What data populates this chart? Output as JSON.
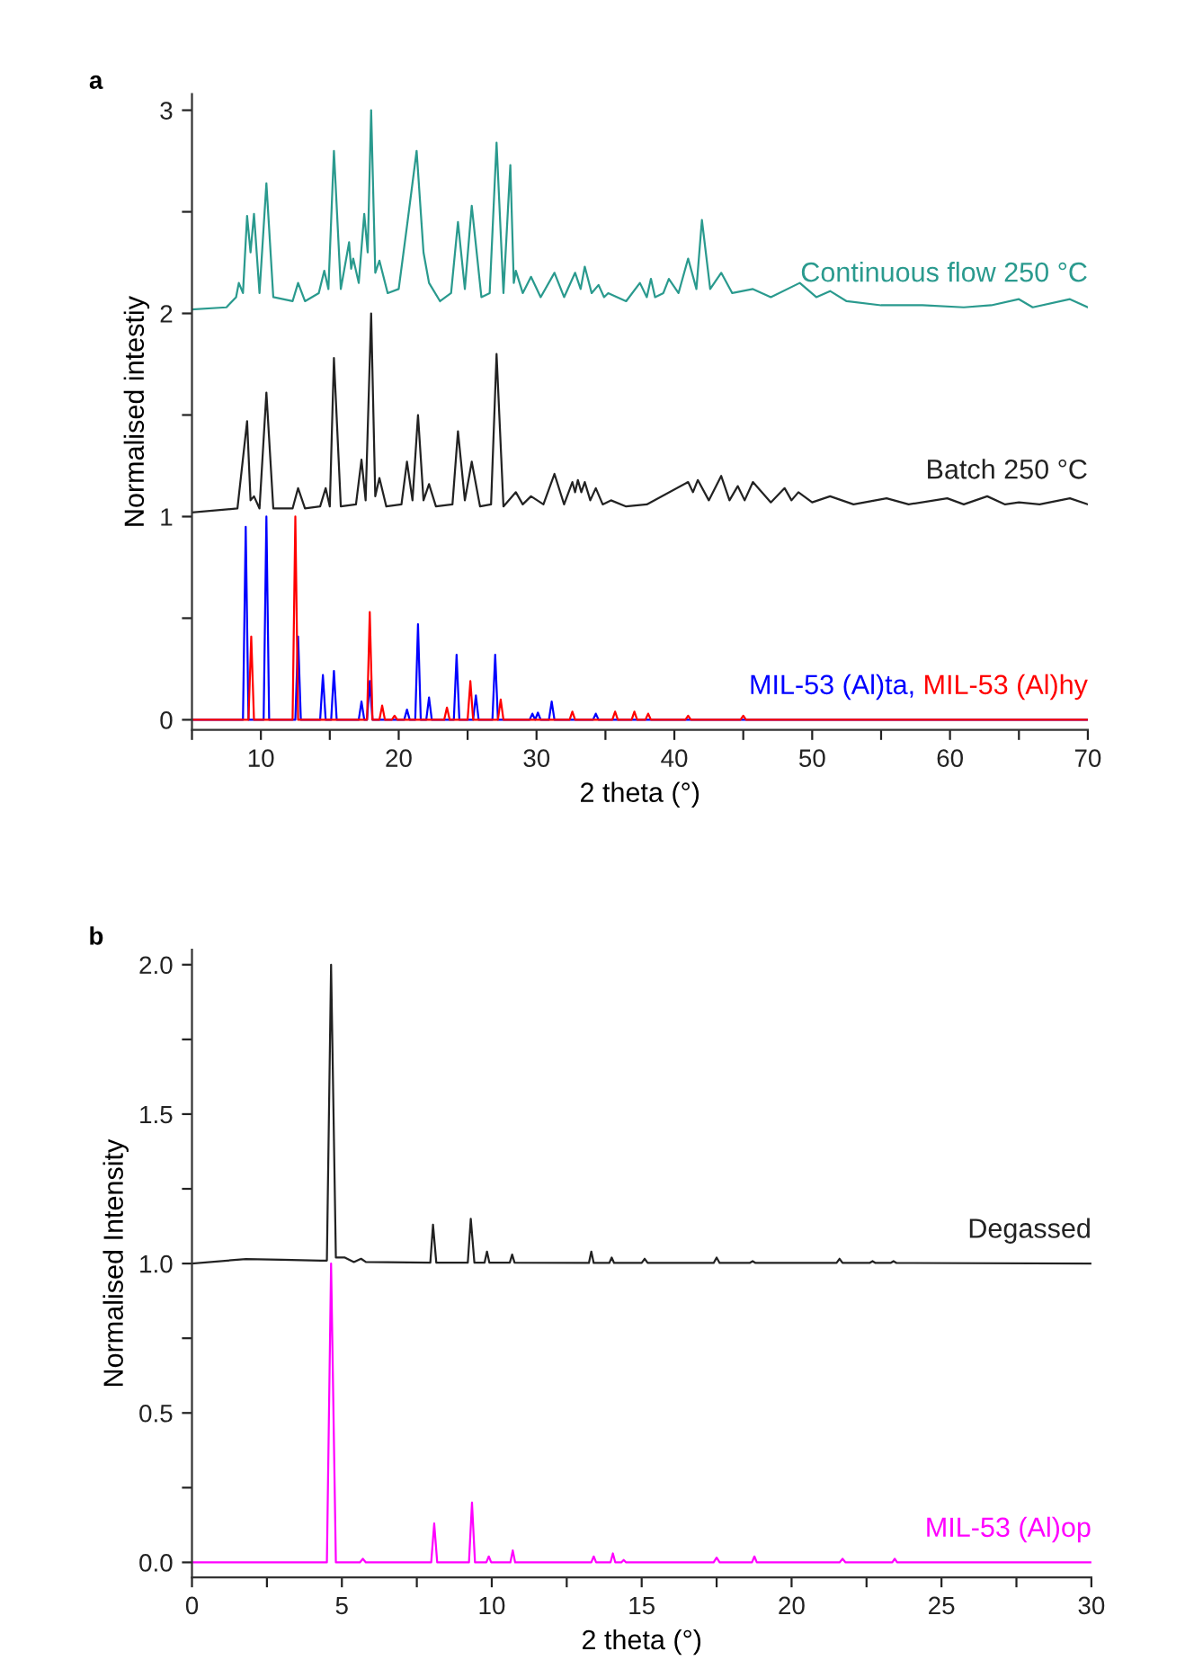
{
  "chart_data": [
    {
      "type": "line",
      "title": "a",
      "xlabel": "2 theta (°)",
      "ylabel": "Normalised intestiy",
      "xlim": [
        5,
        70
      ],
      "ylim": [
        -0.05,
        3.08
      ],
      "xticks": [
        {
          "value": 5,
          "label": null
        },
        10,
        {
          "value": 15,
          "label": null
        },
        20,
        {
          "value": 25,
          "label": null
        },
        30,
        {
          "value": 35,
          "label": null
        },
        40,
        {
          "value": 45,
          "label": null
        },
        50,
        {
          "value": 55,
          "label": null
        },
        60,
        {
          "value": 65,
          "label": null
        },
        70
      ],
      "yticks": [
        0,
        {
          "value": 0.5,
          "label": null
        },
        1,
        {
          "value": 1.5,
          "label": null
        },
        2,
        {
          "value": 2.5,
          "label": null
        },
        3
      ],
      "grid": false,
      "marker": "none",
      "line_style": "solid",
      "series": [
        {
          "name": "Continuous flow 250 °C",
          "color": "#2a9a8e",
          "x": [
            5,
            7.5,
            8.2,
            8.4,
            8.7,
            9.0,
            9.25,
            9.5,
            9.9,
            10.4,
            10.9,
            12.3,
            12.7,
            13.2,
            14.2,
            14.6,
            14.9,
            15.3,
            15.8,
            16.4,
            16.55,
            16.7,
            17.1,
            17.5,
            17.75,
            18.0,
            18.3,
            18.6,
            19.2,
            20.0,
            20.6,
            21.3,
            21.8,
            22.2,
            23.0,
            23.8,
            24.3,
            24.8,
            25.3,
            26.0,
            26.6,
            27.1,
            27.6,
            28.1,
            28.35,
            28.5,
            29.0,
            29.6,
            30.3,
            31.3,
            32.0,
            32.8,
            33.2,
            33.5,
            34.0,
            34.5,
            34.9,
            35.2,
            36.5,
            37.5,
            38.0,
            38.3,
            38.6,
            39.2,
            39.6,
            40.3,
            41.0,
            41.6,
            42.0,
            42.6,
            43.4,
            44.2,
            45.7,
            47.0,
            49.1,
            50.3,
            51.3,
            52.5,
            55,
            58,
            61,
            63,
            65,
            66,
            68.7,
            70
          ],
          "values": [
            2.02,
            2.03,
            2.08,
            2.15,
            2.1,
            2.48,
            2.3,
            2.49,
            2.1,
            2.64,
            2.08,
            2.06,
            2.15,
            2.06,
            2.1,
            2.21,
            2.12,
            2.8,
            2.12,
            2.35,
            2.22,
            2.27,
            2.15,
            2.49,
            2.3,
            3.0,
            2.2,
            2.26,
            2.1,
            2.12,
            2.43,
            2.8,
            2.3,
            2.15,
            2.06,
            2.1,
            2.45,
            2.12,
            2.53,
            2.08,
            2.1,
            2.84,
            2.1,
            2.73,
            2.15,
            2.21,
            2.1,
            2.18,
            2.08,
            2.2,
            2.08,
            2.2,
            2.12,
            2.23,
            2.1,
            2.14,
            2.08,
            2.1,
            2.06,
            2.15,
            2.08,
            2.17,
            2.08,
            2.1,
            2.17,
            2.1,
            2.27,
            2.12,
            2.46,
            2.12,
            2.2,
            2.1,
            2.12,
            2.08,
            2.15,
            2.08,
            2.11,
            2.06,
            2.04,
            2.04,
            2.03,
            2.04,
            2.07,
            2.03,
            2.07,
            2.03
          ]
        },
        {
          "name": "Batch 250 °C",
          "color": "#222222",
          "x": [
            5,
            8.3,
            9.0,
            9.25,
            9.5,
            9.9,
            10.4,
            10.9,
            12.3,
            12.7,
            13.2,
            14.3,
            14.7,
            15.0,
            15.3,
            15.8,
            16.9,
            17.3,
            17.6,
            18.0,
            18.3,
            18.6,
            19.1,
            20.2,
            20.6,
            21.0,
            21.4,
            21.8,
            22.2,
            22.7,
            23.9,
            24.3,
            24.8,
            25.3,
            25.9,
            26.7,
            27.1,
            27.6,
            28.5,
            29.0,
            29.6,
            30.5,
            31.3,
            32.0,
            32.6,
            32.8,
            33.0,
            33.25,
            33.5,
            33.9,
            34.3,
            34.8,
            35.4,
            36.5,
            38,
            41.0,
            41.35,
            41.7,
            42.5,
            43.4,
            44.0,
            44.6,
            45.1,
            45.7,
            47,
            48.0,
            48.5,
            49.0,
            50,
            51.3,
            53,
            55.4,
            57,
            59.8,
            61,
            62.7,
            64,
            65.0,
            66.5,
            68.7,
            70
          ],
          "values": [
            1.02,
            1.04,
            1.47,
            1.08,
            1.1,
            1.04,
            1.61,
            1.04,
            1.04,
            1.14,
            1.04,
            1.05,
            1.14,
            1.05,
            1.78,
            1.05,
            1.06,
            1.28,
            1.08,
            2.0,
            1.1,
            1.19,
            1.05,
            1.06,
            1.27,
            1.08,
            1.5,
            1.08,
            1.16,
            1.05,
            1.06,
            1.42,
            1.08,
            1.27,
            1.05,
            1.06,
            1.8,
            1.05,
            1.12,
            1.06,
            1.1,
            1.06,
            1.21,
            1.06,
            1.17,
            1.12,
            1.18,
            1.12,
            1.17,
            1.08,
            1.14,
            1.06,
            1.08,
            1.05,
            1.06,
            1.17,
            1.12,
            1.18,
            1.08,
            1.2,
            1.08,
            1.15,
            1.08,
            1.17,
            1.07,
            1.14,
            1.08,
            1.12,
            1.07,
            1.1,
            1.06,
            1.09,
            1.06,
            1.09,
            1.06,
            1.1,
            1.06,
            1.07,
            1.06,
            1.09,
            1.06
          ]
        },
        {
          "name": "MIL-53 (Al)ta,",
          "color": "#0000ff",
          "x": [
            5,
            8.7,
            8.9,
            9.1,
            10.2,
            10.4,
            10.6,
            12.5,
            12.7,
            12.9,
            14.3,
            14.5,
            14.7,
            15.1,
            15.3,
            15.5,
            17.1,
            17.3,
            17.5,
            17.7,
            17.9,
            18.1,
            20.4,
            20.6,
            20.8,
            21.2,
            21.4,
            21.6,
            22.0,
            22.2,
            22.4,
            24.0,
            24.2,
            24.4,
            25.4,
            25.6,
            25.8,
            26.8,
            27.0,
            27.2,
            29.5,
            29.7,
            29.9,
            30.1,
            30.3,
            30.9,
            31.1,
            31.3,
            34.1,
            34.3,
            34.5,
            70
          ],
          "values": [
            0,
            0,
            0.95,
            0,
            0,
            1.0,
            0,
            0,
            0.41,
            0,
            0,
            0.22,
            0,
            0,
            0.24,
            0,
            0,
            0.09,
            0,
            0,
            0.19,
            0,
            0,
            0.05,
            0,
            0,
            0.47,
            0,
            0,
            0.11,
            0,
            0,
            0.32,
            0,
            0,
            0.12,
            0,
            0,
            0.32,
            0,
            0,
            0.03,
            0,
            0.035,
            0,
            0,
            0.09,
            0,
            0,
            0.03,
            0,
            0
          ]
        },
        {
          "name": "MIL-53 (Al)hy",
          "color": "#ff0000",
          "x": [
            5,
            9.1,
            9.3,
            9.5,
            12.3,
            12.5,
            12.7,
            17.7,
            17.9,
            18.1,
            18.6,
            18.8,
            19.0,
            19.5,
            19.7,
            19.9,
            23.3,
            23.5,
            23.7,
            25.0,
            25.2,
            25.4,
            27.2,
            27.4,
            27.6,
            32.4,
            32.6,
            32.8,
            35.5,
            35.7,
            35.9,
            36.9,
            37.1,
            37.3,
            37.9,
            38.1,
            38.3,
            40.8,
            41.0,
            41.2,
            44.8,
            45.0,
            45.2,
            70
          ],
          "values": [
            0,
            0,
            0.41,
            0,
            0,
            1.0,
            0,
            0,
            0.53,
            0,
            0,
            0.07,
            0,
            0,
            0.02,
            0,
            0,
            0.06,
            0,
            0,
            0.19,
            0,
            0,
            0.1,
            0,
            0,
            0.04,
            0,
            0,
            0.04,
            0,
            0,
            0.04,
            0,
            0,
            0.03,
            0,
            0,
            0.02,
            0,
            0,
            0.02,
            0,
            0
          ]
        }
      ]
    },
    {
      "type": "line",
      "title": "b",
      "xlabel": "2 theta (°)",
      "ylabel": "Normalised Intensity",
      "xlim": [
        0,
        30
      ],
      "ylim": [
        -0.05,
        2.05
      ],
      "xticks": [
        0,
        {
          "value": 2.5,
          "label": null
        },
        5,
        {
          "value": 7.5,
          "label": null
        },
        10,
        {
          "value": 12.5,
          "label": null
        },
        15,
        {
          "value": 17.5,
          "label": null
        },
        20,
        {
          "value": 22.5,
          "label": null
        },
        25,
        {
          "value": 27.5,
          "label": null
        },
        30
      ],
      "yticks": [
        {
          "value": 0,
          "label": "0.0"
        },
        {
          "value": 0.25,
          "label": null
        },
        0.5,
        {
          "value": 0.75,
          "label": null
        },
        {
          "value": 1,
          "label": "1.0"
        },
        {
          "value": 1.25,
          "label": null
        },
        1.5,
        {
          "value": 1.75,
          "label": null
        },
        {
          "value": 2,
          "label": "2.0"
        }
      ],
      "grid": false,
      "marker": "none",
      "line_style": "solid",
      "series": [
        {
          "name": "Degassed",
          "color": "#222222",
          "x": [
            0,
            1.8,
            3.0,
            4.3,
            4.5,
            4.64,
            4.8,
            5.1,
            5.4,
            5.64,
            5.8,
            7.95,
            8.04,
            8.15,
            9.2,
            9.3,
            9.42,
            9.76,
            9.84,
            9.92,
            10.6,
            10.68,
            10.76,
            13.24,
            13.32,
            13.4,
            13.92,
            14.0,
            14.08,
            15.0,
            15.1,
            15.2,
            17.4,
            17.5,
            17.6,
            18.6,
            18.7,
            18.8,
            21.5,
            21.6,
            21.7,
            22.6,
            22.7,
            22.8,
            23.3,
            23.4,
            23.5,
            30
          ],
          "values": [
            1.0,
            1.015,
            1.013,
            1.01,
            1.01,
            2.0,
            1.02,
            1.02,
            1.005,
            1.016,
            1.005,
            1.003,
            1.13,
            1.003,
            1.003,
            1.15,
            1.003,
            1.003,
            1.04,
            1.003,
            1.003,
            1.03,
            1.003,
            1.002,
            1.04,
            1.002,
            1.002,
            1.02,
            1.002,
            1.002,
            1.016,
            1.002,
            1.002,
            1.02,
            1.002,
            1.002,
            1.008,
            1.002,
            1.002,
            1.016,
            1.002,
            1.002,
            1.008,
            1.002,
            1.002,
            1.008,
            1.002,
            1.0
          ]
        },
        {
          "name": "MIL-53 (Al)op",
          "color": "#ff00ff",
          "x": [
            0,
            4.5,
            4.64,
            4.8,
            5.6,
            5.7,
            5.8,
            7.98,
            8.08,
            8.18,
            9.24,
            9.34,
            9.44,
            9.82,
            9.9,
            9.98,
            10.62,
            10.7,
            10.78,
            13.32,
            13.4,
            13.48,
            13.96,
            14.04,
            14.12,
            14.32,
            14.4,
            14.48,
            17.4,
            17.5,
            17.6,
            18.68,
            18.76,
            18.84,
            21.6,
            21.7,
            21.8,
            23.36,
            23.44,
            23.52,
            30
          ],
          "values": [
            0,
            0,
            1.0,
            0,
            0,
            0.012,
            0,
            0,
            0.13,
            0,
            0,
            0.2,
            0,
            0,
            0.02,
            0,
            0,
            0.04,
            0,
            0,
            0.02,
            0,
            0,
            0.03,
            0,
            0,
            0.008,
            0,
            0,
            0.016,
            0,
            0,
            0.02,
            0,
            0,
            0.012,
            0,
            0,
            0.012,
            0,
            0
          ]
        }
      ]
    }
  ]
}
